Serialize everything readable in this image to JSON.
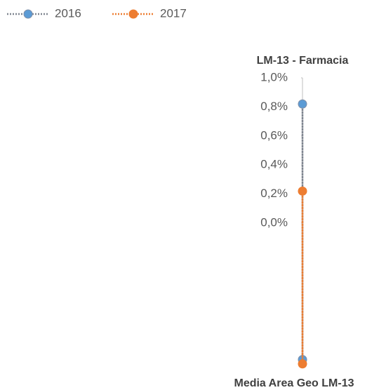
{
  "chart_data": {
    "type": "radar",
    "categories": [
      "LM-13 - Farmacia",
      "Media Area Geo LM-13"
    ],
    "series": [
      {
        "name": "2016",
        "color": "#5b9bd5",
        "line_color": "#7f8590",
        "values": [
          0.82,
          0.94
        ]
      },
      {
        "name": "2017",
        "color": "#ed7d31",
        "line_color": "#ed7d31",
        "values": [
          0.22,
          0.97
        ]
      }
    ],
    "rlim": [
      0,
      1
    ],
    "rticks": [
      {
        "value": 0,
        "label": "0,0%"
      },
      {
        "value": 0.2,
        "label": "0,2%"
      },
      {
        "value": 0.4,
        "label": "0,4%"
      },
      {
        "value": 0.6,
        "label": "0,6%"
      },
      {
        "value": 0.8,
        "label": "0,8%"
      },
      {
        "value": 1,
        "label": "1,0%"
      }
    ],
    "legend": "top-left"
  }
}
